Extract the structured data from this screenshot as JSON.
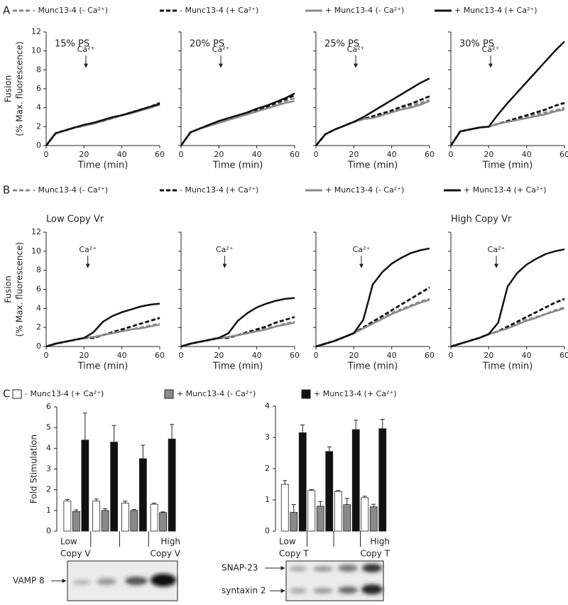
{
  "chart_data": [
    {
      "type": "line",
      "panel_label": "A",
      "ylabel": [
        "Fusion",
        "(% Max. fluorescence)"
      ],
      "xlabel": "Time (min)",
      "xlim": [
        0,
        60
      ],
      "xticks": [
        0,
        20,
        40,
        60
      ],
      "ylim": [
        0,
        12
      ],
      "yticks": [
        0,
        2,
        4,
        6,
        8,
        10,
        12
      ],
      "x": [
        0,
        5,
        10,
        15,
        20,
        25,
        30,
        35,
        40,
        45,
        50,
        55,
        60
      ],
      "series": [
        {
          "name": "- Munc13-4 (- Ca²⁺)",
          "color": "#8a8a8a",
          "dash": true
        },
        {
          "name": "- Munc13-4 (+ Ca²⁺)",
          "color": "#111111",
          "dash": true
        },
        {
          "name": "+ Munc13-4 (- Ca²⁺)",
          "color": "#8a8a8a",
          "dash": false
        },
        {
          "name": "+ Munc13-4 (+ Ca²⁺)",
          "color": "#111111",
          "dash": false
        }
      ],
      "panels": [
        {
          "title": "15% PS",
          "annotation": {
            "text": "Ca²⁺",
            "x": 21
          },
          "series": [
            {
              "values": [
                0,
                1.3,
                1.6,
                1.9,
                2.1,
                2.4,
                2.6,
                2.9,
                3.2,
                3.5,
                3.8,
                4.1,
                4.4
              ]
            },
            {
              "values": [
                0,
                1.3,
                1.6,
                1.9,
                2.1,
                2.4,
                2.6,
                2.9,
                3.2,
                3.5,
                3.8,
                4.1,
                4.5
              ]
            },
            {
              "values": [
                0,
                1.3,
                1.6,
                1.9,
                2.1,
                2.3,
                2.6,
                2.9,
                3.2,
                3.4,
                3.7,
                4.0,
                4.3
              ]
            },
            {
              "values": [
                0,
                1.3,
                1.6,
                1.9,
                2.2,
                2.4,
                2.7,
                3.0,
                3.2,
                3.5,
                3.8,
                4.1,
                4.4
              ]
            }
          ]
        },
        {
          "title": "20% PS",
          "annotation": {
            "text": "Ca²⁺",
            "x": 21
          },
          "series": [
            {
              "values": [
                0,
                1.4,
                1.8,
                2.1,
                2.5,
                2.8,
                3.1,
                3.4,
                3.7,
                4.0,
                4.3,
                4.7,
                5.0
              ]
            },
            {
              "values": [
                0,
                1.4,
                1.8,
                2.2,
                2.5,
                2.8,
                3.1,
                3.5,
                3.8,
                4.1,
                4.5,
                4.9,
                5.3
              ]
            },
            {
              "values": [
                0,
                1.4,
                1.8,
                2.1,
                2.4,
                2.7,
                3.0,
                3.3,
                3.6,
                3.9,
                4.2,
                4.5,
                4.7
              ]
            },
            {
              "values": [
                0,
                1.4,
                1.8,
                2.2,
                2.6,
                2.9,
                3.2,
                3.5,
                3.9,
                4.2,
                4.6,
                5.0,
                5.5
              ]
            }
          ]
        },
        {
          "title": "25% PS",
          "annotation": {
            "text": "Ca²⁺",
            "x": 21
          },
          "series": [
            {
              "values": [
                0,
                1.2,
                1.7,
                2.1,
                2.5,
                2.8,
                3.0,
                3.3,
                3.6,
                3.9,
                4.2,
                4.5,
                4.8
              ]
            },
            {
              "values": [
                0,
                1.2,
                1.7,
                2.1,
                2.5,
                2.8,
                3.1,
                3.4,
                3.7,
                4.1,
                4.4,
                4.8,
                5.2
              ]
            },
            {
              "values": [
                0,
                1.2,
                1.7,
                2.1,
                2.5,
                2.8,
                2.9,
                3.2,
                3.5,
                3.8,
                4.0,
                4.3,
                4.7
              ]
            },
            {
              "values": [
                0,
                1.2,
                1.7,
                2.1,
                2.5,
                3.0,
                3.6,
                4.2,
                4.8,
                5.4,
                6.0,
                6.6,
                7.1
              ]
            }
          ]
        },
        {
          "title": "30% PS",
          "annotation": {
            "text": "Ca²⁺",
            "x": 21
          },
          "series": [
            {
              "values": [
                0,
                1.5,
                1.7,
                1.9,
                2.0,
                2.3,
                2.5,
                2.8,
                3.0,
                3.3,
                3.5,
                3.7,
                4.0
              ]
            },
            {
              "values": [
                0,
                1.5,
                1.7,
                1.9,
                2.0,
                2.3,
                2.6,
                2.9,
                3.2,
                3.5,
                3.8,
                4.2,
                4.5
              ]
            },
            {
              "values": [
                0,
                1.5,
                1.7,
                1.9,
                2.0,
                2.3,
                2.5,
                2.7,
                2.9,
                3.1,
                3.3,
                3.6,
                3.8
              ]
            },
            {
              "values": [
                0,
                1.5,
                1.7,
                1.9,
                2.0,
                3.3,
                4.5,
                5.6,
                6.7,
                7.8,
                8.9,
                10.0,
                11.0
              ]
            }
          ]
        }
      ]
    },
    {
      "type": "line",
      "panel_label": "B",
      "ylabel": [
        "Fusion",
        "(% Max. fluorescence)"
      ],
      "xlabel": "Time (min)",
      "xlim": [
        0,
        60
      ],
      "xticks": [
        0,
        20,
        40,
        60
      ],
      "ylim": [
        0,
        12
      ],
      "yticks": [
        0,
        2,
        4,
        6,
        8,
        10,
        12
      ],
      "x": [
        0,
        5,
        10,
        15,
        20,
        25,
        30,
        35,
        40,
        45,
        50,
        55,
        60
      ],
      "series": [
        {
          "name": "- Munc13-4 (- Ca²⁺)",
          "color": "#8a8a8a",
          "dash": true
        },
        {
          "name": "- Munc13-4 (+ Ca²⁺)",
          "color": "#111111",
          "dash": true
        },
        {
          "name": "+ Munc13-4 (- Ca²⁺)",
          "color": "#8a8a8a",
          "dash": false
        },
        {
          "name": "+ Munc13-4 (+ Ca²⁺)",
          "color": "#111111",
          "dash": false
        }
      ],
      "panels": [
        {
          "title": "Low Copy Vr",
          "annotation": {
            "text": "Ca²⁺",
            "x": 22
          },
          "series": [
            {
              "values": [
                0,
                0.3,
                0.5,
                0.7,
                0.9,
                1.0,
                1.2,
                1.4,
                1.6,
                1.8,
                2.0,
                2.2,
                2.4
              ]
            },
            {
              "values": [
                0,
                0.3,
                0.5,
                0.7,
                0.9,
                0.9,
                1.2,
                1.5,
                1.8,
                2.1,
                2.4,
                2.7,
                3.0
              ]
            },
            {
              "values": [
                0,
                0.3,
                0.5,
                0.7,
                0.9,
                1.0,
                1.2,
                1.4,
                1.6,
                1.8,
                1.9,
                2.1,
                2.3
              ]
            },
            {
              "values": [
                0,
                0.3,
                0.5,
                0.7,
                0.9,
                1.5,
                2.6,
                3.2,
                3.6,
                3.9,
                4.2,
                4.4,
                4.5
              ]
            }
          ]
        },
        {
          "annotation": {
            "text": "Ca²⁺",
            "x": 23
          },
          "series": [
            {
              "values": [
                0,
                0.3,
                0.5,
                0.7,
                0.9,
                1.0,
                1.2,
                1.4,
                1.7,
                1.9,
                2.1,
                2.4,
                2.6
              ]
            },
            {
              "values": [
                0,
                0.3,
                0.5,
                0.7,
                0.9,
                0.9,
                1.2,
                1.5,
                1.8,
                2.1,
                2.5,
                2.8,
                3.1
              ]
            },
            {
              "values": [
                0,
                0.3,
                0.5,
                0.7,
                0.9,
                1.0,
                1.2,
                1.4,
                1.6,
                1.8,
                2.1,
                2.3,
                2.5
              ]
            },
            {
              "values": [
                0,
                0.3,
                0.5,
                0.7,
                0.9,
                1.4,
                2.7,
                3.5,
                4.1,
                4.5,
                4.8,
                5.0,
                5.1
              ]
            }
          ]
        },
        {
          "annotation": {
            "text": "Ca²⁺",
            "x": 24
          },
          "series": [
            {
              "values": [
                0,
                0.3,
                0.6,
                1.0,
                1.4,
                1.9,
                2.5,
                3.0,
                3.5,
                3.9,
                4.3,
                4.7,
                5.0
              ]
            },
            {
              "values": [
                0,
                0.3,
                0.6,
                1.0,
                1.4,
                2.0,
                2.6,
                3.2,
                3.8,
                4.4,
                5.0,
                5.6,
                6.2
              ]
            },
            {
              "values": [
                0,
                0.3,
                0.6,
                1.0,
                1.4,
                1.9,
                2.4,
                2.9,
                3.4,
                3.8,
                4.2,
                4.6,
                4.9
              ]
            },
            {
              "values": [
                0,
                0.3,
                0.6,
                1.0,
                1.4,
                2.8,
                6.5,
                7.8,
                8.7,
                9.3,
                9.8,
                10.1,
                10.3
              ]
            }
          ]
        },
        {
          "title": "High Copy Vr",
          "annotation": {
            "text": "Ca²⁺",
            "x": 24
          },
          "series": [
            {
              "values": [
                0,
                0.3,
                0.6,
                0.9,
                1.3,
                1.6,
                2.0,
                2.4,
                2.8,
                3.1,
                3.4,
                3.8,
                4.1
              ]
            },
            {
              "values": [
                0,
                0.3,
                0.6,
                0.9,
                1.3,
                1.6,
                2.1,
                2.6,
                3.1,
                3.6,
                4.1,
                4.6,
                5.0
              ]
            },
            {
              "values": [
                0,
                0.3,
                0.6,
                0.9,
                1.3,
                1.6,
                1.9,
                2.3,
                2.7,
                3.0,
                3.4,
                3.7,
                4.0
              ]
            },
            {
              "values": [
                0,
                0.3,
                0.6,
                0.9,
                1.3,
                2.5,
                6.3,
                7.7,
                8.6,
                9.2,
                9.7,
                10.0,
                10.2
              ]
            }
          ]
        }
      ]
    },
    {
      "type": "bar",
      "panel_label": "C",
      "ylabel": "Fold Stimulation",
      "ylim": [
        0,
        6
      ],
      "yticks": [
        0,
        1,
        2,
        3,
        4,
        5,
        6
      ],
      "categories": [
        [
          "Low",
          "Copy V"
        ],
        null,
        null,
        [
          "High",
          "Copy V"
        ]
      ],
      "series": [
        {
          "name": "- Munc13-4 (+ Ca²⁺)",
          "color": "#ffffff",
          "values": [
            1.45,
            1.45,
            1.35,
            1.3
          ],
          "errors": [
            0.08,
            0.1,
            0.1,
            0.05
          ]
        },
        {
          "name": "+ Munc13-4 (- Ca²⁺)",
          "color": "#8a8a8a",
          "values": [
            0.95,
            1.0,
            1.0,
            0.9
          ],
          "errors": [
            0.08,
            0.08,
            0.05,
            0.03
          ]
        },
        {
          "name": "+ Munc13-4 (+ Ca²⁺)",
          "color": "#111111",
          "values": [
            4.4,
            4.3,
            3.5,
            4.45
          ],
          "errors": [
            1.3,
            0.8,
            0.65,
            0.7
          ]
        }
      ]
    },
    {
      "type": "bar",
      "ylim": [
        0,
        4
      ],
      "yticks": [
        0,
        1,
        2,
        3,
        4
      ],
      "categories": [
        [
          "Low",
          "Copy T"
        ],
        null,
        null,
        [
          "High",
          "Copy T"
        ]
      ],
      "series": [
        {
          "color": "#ffffff",
          "values": [
            1.5,
            1.3,
            1.27,
            1.07
          ],
          "errors": [
            0.12,
            0.03,
            0.03,
            0.05
          ]
        },
        {
          "color": "#8a8a8a",
          "values": [
            0.6,
            0.8,
            0.85,
            0.78
          ],
          "errors": [
            0.25,
            0.15,
            0.2,
            0.08
          ]
        },
        {
          "color": "#111111",
          "values": [
            3.15,
            2.55,
            3.25,
            3.28
          ],
          "errors": [
            0.25,
            0.15,
            0.3,
            0.3
          ]
        }
      ]
    }
  ],
  "blots": {
    "left": {
      "labels": [
        "VAMP 8"
      ]
    },
    "right": {
      "labels": [
        "SNAP-23",
        "syntaxin 2"
      ]
    }
  }
}
